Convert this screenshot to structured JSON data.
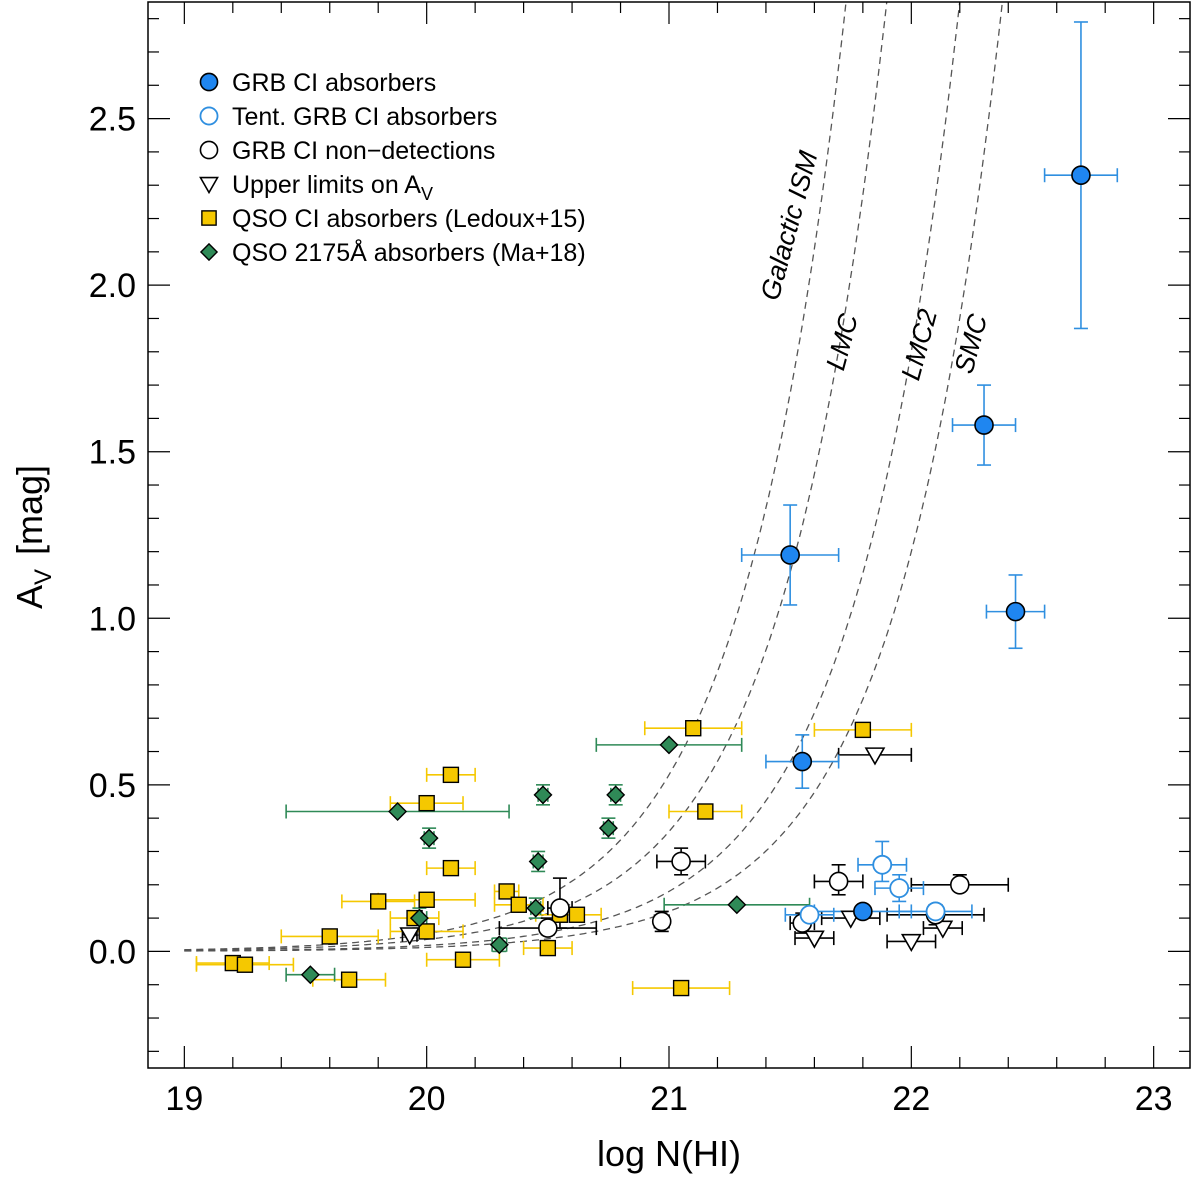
{
  "chart_data": {
    "type": "scatter",
    "xlabel": "log N(HI)",
    "ylabel": "A",
    "ylabel_sub": "V",
    "ylabel_unit": "[mag]",
    "xlim": [
      18.85,
      23.15
    ],
    "ylim": [
      -0.35,
      2.85
    ],
    "x_ticks": [
      "19",
      "20",
      "21",
      "22",
      "23"
    ],
    "y_ticks": [
      "0.0",
      "0.5",
      "1.0",
      "1.5",
      "2.0",
      "2.5"
    ],
    "colors": {
      "grb": "#1f86f0",
      "grb_err": "#2f8fe0",
      "qso_ci": "#f5c800",
      "qso_ci_err": "#f5c800",
      "qso_2175": "#2f8a57",
      "qso_2175_err": "#2f8a57",
      "open_black": "#000000",
      "curve": "#555555"
    },
    "legend": [
      {
        "label": "GRB CI absorbers",
        "marker": "filled-circle"
      },
      {
        "label": "Tent. GRB CI absorbers",
        "marker": "open-circle-blue"
      },
      {
        "label": "GRB CI non−detections",
        "marker": "open-circle"
      },
      {
        "label": "Upper limits on A",
        "sub": "V",
        "marker": "triangle-down"
      },
      {
        "label": "QSO CI absorbers (Ledoux+15)",
        "marker": "square"
      },
      {
        "label": "QSO 2175Å absorbers (Ma+18)",
        "marker": "diamond"
      }
    ],
    "curves": [
      {
        "name": "Galactic ISM",
        "ratio": 5.3e-22
      },
      {
        "name": "LMC",
        "ratio": 3.6e-22
      },
      {
        "name": "LMC2",
        "ratio": 1.8e-22
      },
      {
        "name": "SMC",
        "ratio": 1.2e-22
      }
    ],
    "curve_labels": [
      {
        "text": "Galactic ISM",
        "x": 21.45,
        "y": 1.95
      },
      {
        "text": "LMC",
        "x": 21.72,
        "y": 1.74
      },
      {
        "text": "LMC2",
        "x": 22.03,
        "y": 1.71
      },
      {
        "text": "SMC",
        "x": 22.25,
        "y": 1.73
      }
    ],
    "series": [
      {
        "name": "GRB CI absorbers",
        "marker": "filled-circle",
        "points": [
          {
            "x": 22.7,
            "y": 2.33,
            "xerr": 0.15,
            "yerr_lo": 0.46,
            "yerr_hi": 0.46
          },
          {
            "x": 22.3,
            "y": 1.58,
            "xerr": 0.13,
            "yerr_lo": 0.12,
            "yerr_hi": 0.12
          },
          {
            "x": 21.5,
            "y": 1.19,
            "xerr": 0.2,
            "yerr_lo": 0.15,
            "yerr_hi": 0.15
          },
          {
            "x": 22.43,
            "y": 1.02,
            "xerr": 0.12,
            "yerr_lo": 0.11,
            "yerr_hi": 0.11
          },
          {
            "x": 21.55,
            "y": 0.57,
            "xerr": 0.15,
            "yerr_lo": 0.08,
            "yerr_hi": 0.08
          },
          {
            "x": 21.8,
            "y": 0.12,
            "xerr": 0.2,
            "yerr_lo": 0.0,
            "yerr_hi": 0.0
          }
        ]
      },
      {
        "name": "Tent. GRB CI absorbers",
        "marker": "open-circle-blue",
        "points": [
          {
            "x": 21.88,
            "y": 0.26,
            "xerr": 0.1,
            "yerr_lo": 0.05,
            "yerr_hi": 0.07
          },
          {
            "x": 21.95,
            "y": 0.19,
            "xerr": 0.1,
            "yerr_lo": 0.04,
            "yerr_hi": 0.04
          },
          {
            "x": 22.1,
            "y": 0.12,
            "xerr": 0.15,
            "yerr_lo": 0.0,
            "yerr_hi": 0.0
          },
          {
            "x": 21.58,
            "y": 0.11,
            "xerr": 0.1,
            "yerr_lo": 0.0,
            "yerr_hi": 0.0
          }
        ]
      },
      {
        "name": "GRB CI non-detections",
        "marker": "open-circle",
        "points": [
          {
            "x": 21.05,
            "y": 0.27,
            "xerr": 0.1,
            "yerr_lo": 0.04,
            "yerr_hi": 0.04
          },
          {
            "x": 21.7,
            "y": 0.21,
            "xerr": 0.1,
            "yerr_lo": 0.04,
            "yerr_hi": 0.05
          },
          {
            "x": 22.2,
            "y": 0.2,
            "xerr": 0.2,
            "yerr_lo": 0.0,
            "yerr_hi": 0.03
          },
          {
            "x": 20.55,
            "y": 0.13,
            "xerr": 0.05,
            "yerr_lo": 0.06,
            "yerr_hi": 0.09
          },
          {
            "x": 22.1,
            "y": 0.11,
            "xerr": 0.2,
            "yerr_lo": 0.03,
            "yerr_hi": 0.03
          },
          {
            "x": 20.97,
            "y": 0.09,
            "xerr": 0.03,
            "yerr_lo": 0.03,
            "yerr_hi": 0.03
          },
          {
            "x": 21.55,
            "y": 0.085,
            "xerr": 0.05,
            "yerr_lo": 0.03,
            "yerr_hi": 0.03
          },
          {
            "x": 20.5,
            "y": 0.07,
            "xerr": 0.2,
            "yerr_lo": 0.02,
            "yerr_hi": 0.03
          }
        ]
      },
      {
        "name": "Upper limits on AV",
        "marker": "triangle-down",
        "points": [
          {
            "x": 21.85,
            "y": 0.59,
            "xerr": 0.15
          },
          {
            "x": 21.75,
            "y": 0.1,
            "xerr": 0.12
          },
          {
            "x": 21.6,
            "y": 0.04,
            "xerr": 0.08
          },
          {
            "x": 22.0,
            "y": 0.03,
            "xerr": 0.1
          },
          {
            "x": 22.13,
            "y": 0.07,
            "xerr": 0.08
          },
          {
            "x": 19.93,
            "y": 0.05,
            "xerr": 0.03
          }
        ]
      },
      {
        "name": "QSO CI absorbers (Ledoux+15)",
        "marker": "square",
        "points": [
          {
            "x": 21.1,
            "y": 0.67,
            "xerr": 0.2
          },
          {
            "x": 21.8,
            "y": 0.665,
            "xerr": 0.2
          },
          {
            "x": 20.1,
            "y": 0.53,
            "xerr": 0.1
          },
          {
            "x": 20.0,
            "y": 0.445,
            "xerr": 0.15
          },
          {
            "x": 21.15,
            "y": 0.42,
            "xerr": 0.15
          },
          {
            "x": 20.1,
            "y": 0.25,
            "xerr": 0.1
          },
          {
            "x": 20.33,
            "y": 0.18,
            "xerr": 0.05
          },
          {
            "x": 19.8,
            "y": 0.15,
            "xerr": 0.15
          },
          {
            "x": 20.0,
            "y": 0.155,
            "xerr": 0.2
          },
          {
            "x": 20.38,
            "y": 0.14,
            "xerr": 0.1
          },
          {
            "x": 20.55,
            "y": 0.11,
            "xerr": 0.1
          },
          {
            "x": 20.62,
            "y": 0.11,
            "xerr": 0.1
          },
          {
            "x": 19.95,
            "y": 0.1,
            "xerr": 0.1
          },
          {
            "x": 20.0,
            "y": 0.06,
            "xerr": 0.15
          },
          {
            "x": 19.6,
            "y": 0.045,
            "xerr": 0.2
          },
          {
            "x": 20.5,
            "y": 0.01,
            "xerr": 0.1
          },
          {
            "x": 20.15,
            "y": -0.025,
            "xerr": 0.15
          },
          {
            "x": 19.2,
            "y": -0.035,
            "xerr": 0.15
          },
          {
            "x": 19.25,
            "y": -0.04,
            "xerr": 0.2
          },
          {
            "x": 19.68,
            "y": -0.085,
            "xerr": 0.15
          },
          {
            "x": 21.05,
            "y": -0.11,
            "xerr": 0.2
          }
        ]
      },
      {
        "name": "QSO 2175Å absorbers (Ma+18)",
        "marker": "diamond",
        "points": [
          {
            "x": 21.0,
            "y": 0.62,
            "xerr": 0.3,
            "yerr_lo": 0.0,
            "yerr_hi": 0.0
          },
          {
            "x": 20.48,
            "y": 0.47,
            "xerr": 0.02,
            "yerr_lo": 0.03,
            "yerr_hi": 0.03
          },
          {
            "x": 20.78,
            "y": 0.47,
            "xerr": 0.02,
            "yerr_lo": 0.03,
            "yerr_hi": 0.03
          },
          {
            "x": 19.88,
            "y": 0.42,
            "xerr": 0.46,
            "yerr_lo": 0.0,
            "yerr_hi": 0.0
          },
          {
            "x": 20.75,
            "y": 0.37,
            "xerr": 0.02,
            "yerr_lo": 0.03,
            "yerr_hi": 0.03
          },
          {
            "x": 20.01,
            "y": 0.34,
            "xerr": 0.02,
            "yerr_lo": 0.03,
            "yerr_hi": 0.03
          },
          {
            "x": 20.46,
            "y": 0.27,
            "xerr": 0.02,
            "yerr_lo": 0.03,
            "yerr_hi": 0.03
          },
          {
            "x": 21.28,
            "y": 0.14,
            "xerr": 0.3,
            "yerr_lo": 0.0,
            "yerr_hi": 0.0
          },
          {
            "x": 20.45,
            "y": 0.13,
            "xerr": 0.02,
            "yerr_lo": 0.03,
            "yerr_hi": 0.03
          },
          {
            "x": 19.97,
            "y": 0.1,
            "xerr": 0.03,
            "yerr_lo": 0.03,
            "yerr_hi": 0.03
          },
          {
            "x": 20.3,
            "y": 0.02,
            "xerr": 0.03,
            "yerr_lo": 0.02,
            "yerr_hi": 0.02
          },
          {
            "x": 19.52,
            "y": -0.07,
            "xerr": 0.1,
            "yerr_lo": 0.0,
            "yerr_hi": 0.0
          }
        ]
      }
    ]
  }
}
